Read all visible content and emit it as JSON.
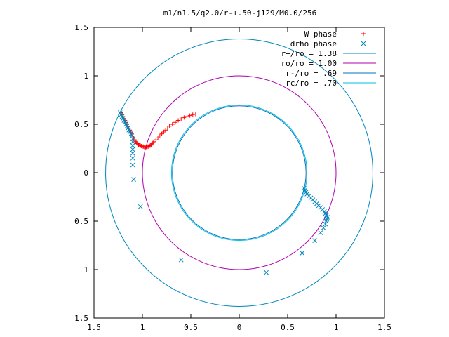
{
  "chart_data": {
    "type": "scatter",
    "title": "m1/n1.5/q2.0/r-+.50-j129/M0.0/256",
    "xlabel": "",
    "ylabel": "",
    "xlim": [
      -1.5,
      1.5
    ],
    "ylim": [
      -1.5,
      1.5
    ],
    "x_ticks": [
      "1.5",
      "1",
      "0.5",
      "0",
      "0.5",
      "1",
      "1.5"
    ],
    "y_ticks": [
      "1.5",
      "1",
      "0.5",
      "0",
      "0.5",
      "1",
      "1.5"
    ],
    "grid": false,
    "legend_position": "top-right",
    "series": [
      {
        "name": "W phase",
        "marker": "plus",
        "color": "#ff0000",
        "points": [
          [
            -1.22,
            0.62
          ],
          [
            -1.21,
            0.6
          ],
          [
            -1.2,
            0.58
          ],
          [
            -1.19,
            0.56
          ],
          [
            -1.18,
            0.54
          ],
          [
            -1.17,
            0.52
          ],
          [
            -1.16,
            0.5
          ],
          [
            -1.15,
            0.48
          ],
          [
            -1.14,
            0.46
          ],
          [
            -1.13,
            0.44
          ],
          [
            -1.12,
            0.42
          ],
          [
            -1.11,
            0.4
          ],
          [
            -1.1,
            0.38
          ],
          [
            -1.09,
            0.36
          ],
          [
            -1.08,
            0.34
          ],
          [
            -1.07,
            0.32
          ],
          [
            -1.06,
            0.31
          ],
          [
            -1.05,
            0.3
          ],
          [
            -1.04,
            0.29
          ],
          [
            -1.03,
            0.285
          ],
          [
            -1.02,
            0.28
          ],
          [
            -1.01,
            0.275
          ],
          [
            -1.0,
            0.27
          ],
          [
            -0.99,
            0.27
          ],
          [
            -0.98,
            0.265
          ],
          [
            -0.97,
            0.265
          ],
          [
            -0.96,
            0.265
          ],
          [
            -0.95,
            0.27
          ],
          [
            -0.94,
            0.27
          ],
          [
            -0.93,
            0.275
          ],
          [
            -0.92,
            0.28
          ],
          [
            -0.91,
            0.29
          ],
          [
            -0.9,
            0.3
          ],
          [
            -0.89,
            0.31
          ],
          [
            -0.88,
            0.32
          ],
          [
            -0.86,
            0.34
          ],
          [
            -0.84,
            0.36
          ],
          [
            -0.82,
            0.38
          ],
          [
            -0.8,
            0.4
          ],
          [
            -0.78,
            0.42
          ],
          [
            -0.76,
            0.44
          ],
          [
            -0.74,
            0.46
          ],
          [
            -0.72,
            0.48
          ],
          [
            -0.69,
            0.5
          ],
          [
            -0.66,
            0.52
          ],
          [
            -0.63,
            0.54
          ],
          [
            -0.6,
            0.555
          ],
          [
            -0.57,
            0.57
          ],
          [
            -0.54,
            0.58
          ],
          [
            -0.51,
            0.59
          ],
          [
            -0.48,
            0.6
          ],
          [
            -0.45,
            0.605
          ]
        ]
      },
      {
        "name": "drho phase",
        "marker": "cross",
        "color": "#0087bd",
        "points": [
          [
            -1.23,
            0.62
          ],
          [
            -1.22,
            0.6
          ],
          [
            -1.21,
            0.58
          ],
          [
            -1.2,
            0.56
          ],
          [
            -1.19,
            0.54
          ],
          [
            -1.18,
            0.52
          ],
          [
            -1.17,
            0.5
          ],
          [
            -1.16,
            0.48
          ],
          [
            -1.15,
            0.46
          ],
          [
            -1.14,
            0.44
          ],
          [
            -1.13,
            0.42
          ],
          [
            -1.12,
            0.4
          ],
          [
            -1.11,
            0.38
          ],
          [
            -1.1,
            0.35
          ],
          [
            -1.1,
            0.32
          ],
          [
            -1.1,
            0.28
          ],
          [
            -1.1,
            0.24
          ],
          [
            -1.1,
            0.2
          ],
          [
            -1.1,
            0.15
          ],
          [
            -1.1,
            0.08
          ],
          [
            -1.09,
            -0.07
          ],
          [
            -1.02,
            -0.35
          ],
          [
            -0.6,
            -0.9
          ],
          [
            0.28,
            -1.03
          ],
          [
            0.65,
            -0.83
          ],
          [
            0.78,
            -0.7
          ],
          [
            0.84,
            -0.62
          ],
          [
            0.87,
            -0.57
          ],
          [
            0.89,
            -0.53
          ],
          [
            0.9,
            -0.5
          ],
          [
            0.905,
            -0.48
          ],
          [
            0.91,
            -0.46
          ],
          [
            0.9,
            -0.44
          ],
          [
            0.89,
            -0.42
          ],
          [
            0.88,
            -0.4
          ],
          [
            0.86,
            -0.38
          ],
          [
            0.84,
            -0.36
          ],
          [
            0.82,
            -0.34
          ],
          [
            0.8,
            -0.32
          ],
          [
            0.78,
            -0.3
          ],
          [
            0.76,
            -0.28
          ],
          [
            0.74,
            -0.26
          ],
          [
            0.72,
            -0.24
          ],
          [
            0.7,
            -0.22
          ],
          [
            0.69,
            -0.2
          ],
          [
            0.68,
            -0.18
          ],
          [
            0.67,
            -0.16
          ]
        ]
      }
    ],
    "circles": [
      {
        "name": "r+/ro = 1.38",
        "radius": 1.38,
        "color": "#0087bd"
      },
      {
        "name": "ro/ro = 1.00",
        "radius": 1.0,
        "color": "#b000b0"
      },
      {
        "name": "r-/ro = .69",
        "radius": 0.69,
        "color": "#0070c0"
      },
      {
        "name": "rc/ro = .70",
        "radius": 0.7,
        "color": "#00c0e0"
      }
    ]
  }
}
